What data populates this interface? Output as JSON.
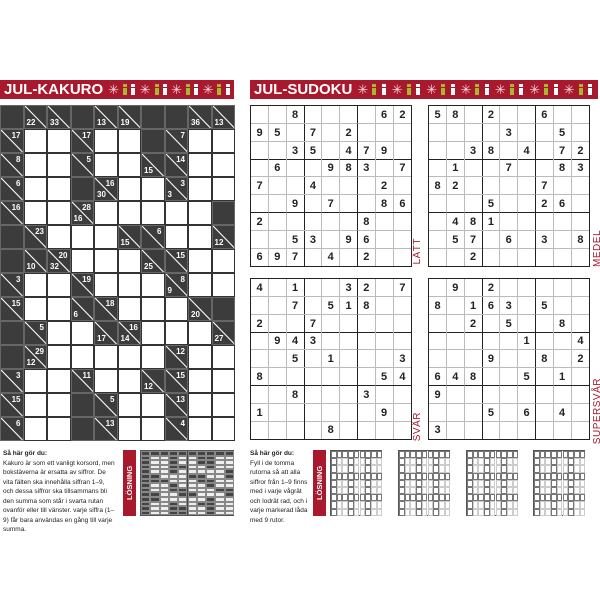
{
  "colors": {
    "accent": "#a8192e",
    "gift_green": "#a7b82e",
    "cell_dark": "#3c3c3c"
  },
  "kakuro": {
    "title": "JUL-KAKURO",
    "grid": [
      [
        "B",
        "22/",
        "33/",
        "B",
        "13/",
        "19/",
        "B",
        "B",
        "36/",
        "13/"
      ],
      [
        "/17",
        "W",
        "W",
        "/17",
        "W",
        "W",
        "B",
        "/7",
        "W",
        "W"
      ],
      [
        "/8",
        "W",
        "W",
        "/5",
        "W",
        "W",
        "15/",
        "/14",
        "W",
        "W"
      ],
      [
        "/6",
        "W",
        "W",
        "B",
        "30/16",
        "W",
        "W",
        "3/3",
        "W",
        "W"
      ],
      [
        "/16",
        "W",
        "W",
        "16/28",
        "W",
        "W",
        "W",
        "W",
        "W",
        "B"
      ],
      [
        "B",
        "/23",
        "W",
        "W",
        "W",
        "15/",
        "/6",
        "W",
        "W",
        "12/"
      ],
      [
        "B",
        "10/",
        "32/20",
        "W",
        "W",
        "W",
        "25/",
        "/15",
        "W",
        "W"
      ],
      [
        "/3",
        "W",
        "W",
        "/19",
        "W",
        "W",
        "W",
        "9/8",
        "W",
        "W"
      ],
      [
        "/15",
        "W",
        "W",
        "6/",
        "/18",
        "W",
        "W",
        "W",
        "20/",
        "B"
      ],
      [
        "B",
        "/5",
        "W",
        "W",
        "17/",
        "14/16",
        "W",
        "W",
        "W",
        "27/"
      ],
      [
        "B",
        "12/29",
        "W",
        "W",
        "W",
        "W",
        "W",
        "/12",
        "W",
        "W"
      ],
      [
        "/3",
        "W",
        "W",
        "/11",
        "W",
        "W",
        "12/",
        "/15",
        "W",
        "W"
      ],
      [
        "/15",
        "W",
        "W",
        "B",
        "/5",
        "W",
        "W",
        "/13",
        "W",
        "W"
      ],
      [
        "/6",
        "W",
        "W",
        "B",
        "/13",
        "W",
        "W",
        "/4",
        "W",
        "W"
      ]
    ],
    "instructions_heading": "Så här gör du:",
    "instructions": "Kakuro är som ett vanligt korsord, men bokstäverna är ersatta av siffror. De vita fälten ska innehålla siffran 1–9, och dessa siffror ska tillsammans bli den summa som står i svarta rutan ovanför eller till vänster. varje siffra (1–9) får bara användas en gång till varje summa.",
    "solution_label": "LÖSNING"
  },
  "sudoku": {
    "title": "JUL-SUDOKU",
    "puzzles": [
      {
        "level": "LÄTT",
        "rows": [
          "..8....62",
          "95.7.2...",
          "..35.479.",
          ".6..983.7",
          "7..4...2.",
          "..9.7..86",
          "2.....8..",
          "..53.96..",
          "697.4.2.."
        ]
      },
      {
        "level": "MEDEL",
        "rows": [
          "58.2..6..",
          "....3..5.",
          "..38.4.72",
          ".1..7..83",
          "82....7..",
          "...5..26.",
          ".481.....",
          ".57.6.3.8",
          "..2......"
        ]
      },
      {
        "level": "SVÅR",
        "rows": [
          "4.1..32.7",
          "..7.518..",
          "2..7.....",
          ".943.....",
          "..5.1...3",
          "8......54",
          "..8...3..",
          "1......9.",
          "....8...."
        ]
      },
      {
        "level": "SUPERSVÅR",
        "rows": [
          ".9.2.....",
          "8.163.5..",
          "..2.5..8.",
          ".....1..4",
          "...9..8.2",
          "648..5.1.",
          "9........",
          "...5.6.4.",
          "3........"
        ]
      }
    ],
    "instructions_heading": "Så här gör du:",
    "instructions": "Fyll i de tomma rutorna så att alla siffror från 1–9 finns med i varje vågrät och lodrät rad, och i varje markerad låda med 9 rutor.",
    "solution_label": "LÖSNING"
  },
  "header_icons": [
    "snowflake-icon",
    "gift-green-icon",
    "gift-white-icon"
  ]
}
